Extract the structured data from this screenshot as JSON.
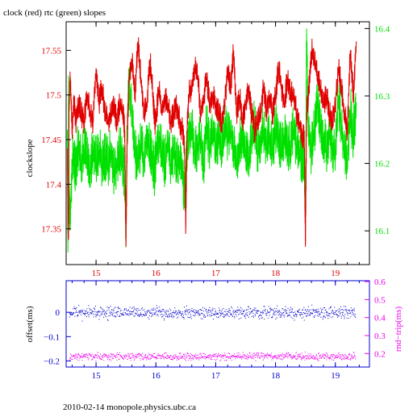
{
  "title": "clock (red) rtc (green) slopes",
  "footer": "2010-02-14  monopole.physics.ubc.ca",
  "colors": {
    "clock": "#e00000",
    "rtc": "#00e000",
    "offset": "#0000cc",
    "roundtrip": "#ee00ee",
    "axis": "#000000"
  },
  "chart_data": [
    {
      "type": "line",
      "title": "clock (red) rtc (green) slopes",
      "xlabel": "",
      "xlim": [
        14.5,
        19.57
      ],
      "xticks": [
        "15",
        "16",
        "17",
        "18",
        "19"
      ],
      "ylabel": "clockslope",
      "ylim": [
        17.31,
        17.582
      ],
      "yticks": [
        "17.35",
        "17.4",
        "17.45",
        "17.5",
        "17.55"
      ],
      "y2lim": [
        16.05,
        16.41
      ],
      "y2ticks": [
        "16.1",
        "16.2",
        "16.3",
        "16.4"
      ],
      "grid": false,
      "series": [
        {
          "name": "clock",
          "axis": "left",
          "x": [
            14.52,
            14.53,
            14.54,
            14.55,
            14.57,
            14.6,
            14.63,
            14.66,
            14.7,
            14.75,
            14.8,
            14.85,
            14.9,
            14.95,
            15.0,
            15.05,
            15.1,
            15.15,
            15.2,
            15.25,
            15.3,
            15.35,
            15.4,
            15.45,
            15.48,
            15.5,
            15.52,
            15.55,
            15.6,
            15.65,
            15.7,
            15.75,
            15.8,
            15.85,
            15.9,
            15.95,
            15.98,
            16.0,
            16.05,
            16.1,
            16.15,
            16.2,
            16.25,
            16.3,
            16.35,
            16.4,
            16.45,
            16.48,
            16.5,
            16.52,
            16.55,
            16.6,
            16.65,
            16.7,
            16.75,
            16.8,
            16.85,
            16.9,
            16.95,
            17.0,
            17.05,
            17.1,
            17.15,
            17.2,
            17.25,
            17.3,
            17.35,
            17.4,
            17.45,
            17.5,
            17.55,
            17.6,
            17.65,
            17.7,
            17.75,
            17.8,
            17.85,
            17.9,
            17.95,
            18.0,
            18.05,
            18.1,
            18.15,
            18.2,
            18.25,
            18.3,
            18.35,
            18.4,
            18.45,
            18.48,
            18.5,
            18.52,
            18.55,
            18.6,
            18.65,
            18.7,
            18.75,
            18.8,
            18.85,
            18.9,
            18.95,
            19.0,
            19.05,
            19.1,
            19.15,
            19.2,
            19.25,
            19.3,
            19.35
          ],
          "y": [
            17.44,
            17.36,
            17.34,
            17.49,
            17.52,
            17.46,
            17.5,
            17.47,
            17.49,
            17.48,
            17.47,
            17.5,
            17.48,
            17.47,
            17.53,
            17.49,
            17.51,
            17.48,
            17.47,
            17.48,
            17.49,
            17.47,
            17.49,
            17.48,
            17.46,
            17.33,
            17.45,
            17.52,
            17.54,
            17.5,
            17.56,
            17.52,
            17.48,
            17.49,
            17.54,
            17.5,
            17.47,
            17.47,
            17.51,
            17.48,
            17.5,
            17.49,
            17.47,
            17.48,
            17.49,
            17.47,
            17.46,
            17.44,
            17.35,
            17.46,
            17.5,
            17.51,
            17.53,
            17.52,
            17.48,
            17.5,
            17.52,
            17.49,
            17.5,
            17.49,
            17.48,
            17.47,
            17.49,
            17.53,
            17.51,
            17.55,
            17.48,
            17.5,
            17.47,
            17.49,
            17.51,
            17.48,
            17.46,
            17.47,
            17.48,
            17.51,
            17.48,
            17.5,
            17.48,
            17.5,
            17.53,
            17.51,
            17.49,
            17.52,
            17.5,
            17.5,
            17.48,
            17.47,
            17.45,
            17.46,
            17.33,
            17.48,
            17.5,
            17.55,
            17.54,
            17.52,
            17.51,
            17.49,
            17.5,
            17.48,
            17.47,
            17.49,
            17.53,
            17.51,
            17.48,
            17.46,
            17.55,
            17.5,
            17.56
          ]
        },
        {
          "name": "rtc",
          "axis": "right",
          "x": [
            14.52,
            14.53,
            14.54,
            14.55,
            14.57,
            14.6,
            14.63,
            14.66,
            14.7,
            14.75,
            14.8,
            14.85,
            14.9,
            14.95,
            15.0,
            15.05,
            15.1,
            15.15,
            15.2,
            15.25,
            15.3,
            15.35,
            15.4,
            15.45,
            15.48,
            15.5,
            15.52,
            15.55,
            15.6,
            15.65,
            15.7,
            15.75,
            15.8,
            15.85,
            15.9,
            15.95,
            15.98,
            16.0,
            16.05,
            16.1,
            16.15,
            16.2,
            16.25,
            16.3,
            16.35,
            16.4,
            16.45,
            16.48,
            16.5,
            16.52,
            16.55,
            16.6,
            16.65,
            16.7,
            16.75,
            16.8,
            16.85,
            16.9,
            16.95,
            17.0,
            17.05,
            17.1,
            17.15,
            17.2,
            17.25,
            17.3,
            17.35,
            17.4,
            17.45,
            17.5,
            17.55,
            17.6,
            17.65,
            17.7,
            17.75,
            17.8,
            17.85,
            17.9,
            17.95,
            18.0,
            18.05,
            18.1,
            18.15,
            18.2,
            18.25,
            18.3,
            18.35,
            18.4,
            18.45,
            18.48,
            18.5,
            18.52,
            18.55,
            18.6,
            18.65,
            18.7,
            18.75,
            18.8,
            18.85,
            18.9,
            18.95,
            19.0,
            19.05,
            19.1,
            19.15,
            19.2,
            19.25,
            19.3,
            19.35
          ],
          "y": [
            16.25,
            16.08,
            16.33,
            16.15,
            16.12,
            16.2,
            16.22,
            16.18,
            16.23,
            16.2,
            16.22,
            16.21,
            16.19,
            16.22,
            16.2,
            16.22,
            16.2,
            16.21,
            16.2,
            16.22,
            16.19,
            16.2,
            16.22,
            16.2,
            16.18,
            16.1,
            16.25,
            16.32,
            16.27,
            16.22,
            16.2,
            16.23,
            16.2,
            16.25,
            16.22,
            16.2,
            16.18,
            16.21,
            16.24,
            16.22,
            16.2,
            16.23,
            16.2,
            16.22,
            16.2,
            16.21,
            16.18,
            16.15,
            16.18,
            16.22,
            16.24,
            16.25,
            16.21,
            16.23,
            16.24,
            16.2,
            16.26,
            16.22,
            16.25,
            16.23,
            16.24,
            16.22,
            16.26,
            16.24,
            16.25,
            16.22,
            16.2,
            16.23,
            16.25,
            16.22,
            16.21,
            16.24,
            16.26,
            16.22,
            16.24,
            16.25,
            16.23,
            16.24,
            16.22,
            16.25,
            16.24,
            16.22,
            16.24,
            16.23,
            16.22,
            16.25,
            16.23,
            16.22,
            16.2,
            16.2,
            16.12,
            16.4,
            16.25,
            16.22,
            16.25,
            16.3,
            16.26,
            16.24,
            16.22,
            16.25,
            16.23,
            16.21,
            16.3,
            16.25,
            16.22,
            16.2,
            16.28,
            16.24,
            16.29
          ]
        }
      ]
    },
    {
      "type": "scatter",
      "xlim": [
        14.5,
        19.57
      ],
      "xticks": [
        "15",
        "16",
        "17",
        "18",
        "19"
      ],
      "ylabel": "offset(ms)",
      "ylim": [
        -0.225,
        0.13
      ],
      "yticks": [
        "0",
        "−0.1",
        "−0.2"
      ],
      "y2label": "rnd−trip(ms)",
      "y2lim": [
        0.125,
        0.605
      ],
      "y2ticks": [
        "0.2",
        "0.3",
        "0.4",
        "0.5",
        "0.6"
      ],
      "grid": false,
      "series": [
        {
          "name": "offset",
          "axis": "left",
          "x_range": [
            14.55,
            19.33
          ],
          "y_mean": 0.0,
          "y_spread": 0.015
        },
        {
          "name": "rnd-trip",
          "axis": "right",
          "x_range": [
            14.55,
            19.33
          ],
          "y_mean": 0.185,
          "y_spread": 0.012
        }
      ]
    }
  ]
}
